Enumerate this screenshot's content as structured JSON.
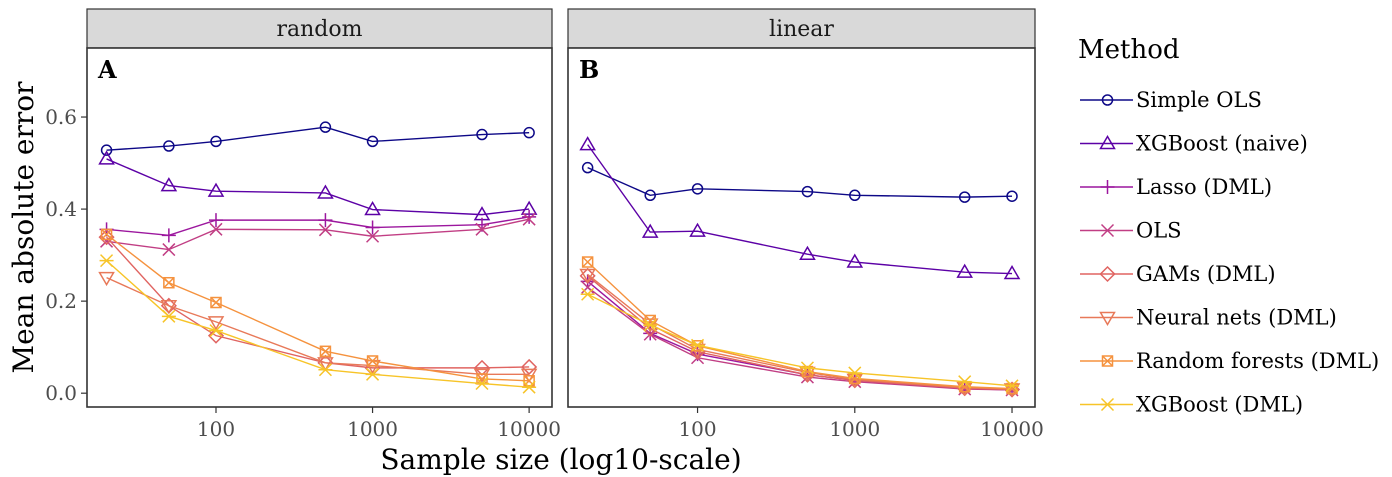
{
  "chart_data": {
    "type": "line",
    "xlabel": "Sample size (log10-scale)",
    "ylabel": "Mean absolute error",
    "x_scale": "log10",
    "xlim": [
      15,
      14000
    ],
    "ylim": [
      -0.03,
      0.75
    ],
    "x_ticks": [
      100,
      1000,
      10000
    ],
    "x_tick_labels": [
      "100",
      "1000",
      "10000"
    ],
    "y_ticks": [
      0.0,
      0.2,
      0.4,
      0.6
    ],
    "y_tick_labels": [
      "0.0",
      "0.2",
      "0.4",
      "0.6"
    ],
    "x": [
      20,
      50,
      100,
      500,
      1000,
      5000,
      10000
    ],
    "legend": {
      "title": "Method",
      "position": "right"
    },
    "grid": false,
    "panels": [
      {
        "strip": "random",
        "tag": "A",
        "series": [
          {
            "name": "Simple OLS",
            "color": "#0d0887",
            "shape": "circle",
            "values": [
              0.528,
              0.537,
              0.547,
              0.578,
              0.547,
              0.562,
              0.566
            ]
          },
          {
            "name": "XGBoost (naive)",
            "color": "#5c01a6",
            "shape": "triangle",
            "values": [
              0.509,
              0.451,
              0.439,
              0.435,
              0.399,
              0.388,
              0.4
            ]
          },
          {
            "name": "Lasso (DML)",
            "color": "#9c179e",
            "shape": "plus",
            "values": [
              0.356,
              0.343,
              0.376,
              0.376,
              0.36,
              0.366,
              0.383
            ]
          },
          {
            "name": "OLS",
            "color": "#c13e84",
            "shape": "cross",
            "values": [
              0.33,
              0.312,
              0.356,
              0.355,
              0.341,
              0.356,
              0.378
            ]
          },
          {
            "name": "GAMs (DML)",
            "color": "#e06461",
            "shape": "diamond",
            "values": [
              0.339,
              0.19,
              0.125,
              0.066,
              0.055,
              0.055,
              0.057
            ]
          },
          {
            "name": "Neural nets (DML)",
            "color": "#e87959",
            "shape": "triangle-down",
            "values": [
              0.251,
              0.19,
              0.155,
              0.066,
              0.06,
              0.041,
              0.041
            ]
          },
          {
            "name": "Random forests (DML)",
            "color": "#f5923e",
            "shape": "square-cross",
            "values": [
              0.345,
              0.24,
              0.197,
              0.091,
              0.07,
              0.031,
              0.027
            ]
          },
          {
            "name": "XGBoost (DML)",
            "color": "#f7c428",
            "shape": "asterisk",
            "values": [
              0.288,
              0.167,
              0.136,
              0.051,
              0.041,
              0.021,
              0.013
            ]
          }
        ]
      },
      {
        "strip": "linear",
        "tag": "B",
        "series": [
          {
            "name": "Simple OLS",
            "color": "#0d0887",
            "shape": "circle",
            "values": [
              0.49,
              0.43,
              0.444,
              0.438,
              0.43,
              0.426,
              0.428
            ]
          },
          {
            "name": "XGBoost (naive)",
            "color": "#5c01a6",
            "shape": "triangle",
            "values": [
              0.54,
              0.35,
              0.352,
              0.302,
              0.285,
              0.263,
              0.26
            ]
          },
          {
            "name": "Lasso (DML)",
            "color": "#9c179e",
            "shape": "plus",
            "values": [
              0.243,
              0.13,
              0.085,
              0.04,
              0.028,
              0.01,
              0.007
            ]
          },
          {
            "name": "OLS",
            "color": "#c13e84",
            "shape": "cross",
            "values": [
              0.23,
              0.128,
              0.077,
              0.035,
              0.025,
              0.009,
              0.007
            ]
          },
          {
            "name": "GAMs (DML)",
            "color": "#e06461",
            "shape": "diamond",
            "values": [
              0.255,
              0.14,
              0.09,
              0.04,
              0.028,
              0.011,
              0.008
            ]
          },
          {
            "name": "Neural nets (DML)",
            "color": "#e87959",
            "shape": "triangle-down",
            "values": [
              0.258,
              0.15,
              0.095,
              0.045,
              0.03,
              0.012,
              0.009
            ]
          },
          {
            "name": "Random forests (DML)",
            "color": "#f5923e",
            "shape": "square-cross",
            "values": [
              0.285,
              0.158,
              0.103,
              0.047,
              0.032,
              0.014,
              0.01
            ]
          },
          {
            "name": "XGBoost (DML)",
            "color": "#f7c428",
            "shape": "asterisk",
            "values": [
              0.215,
              0.148,
              0.104,
              0.055,
              0.044,
              0.025,
              0.016
            ]
          }
        ]
      }
    ]
  }
}
